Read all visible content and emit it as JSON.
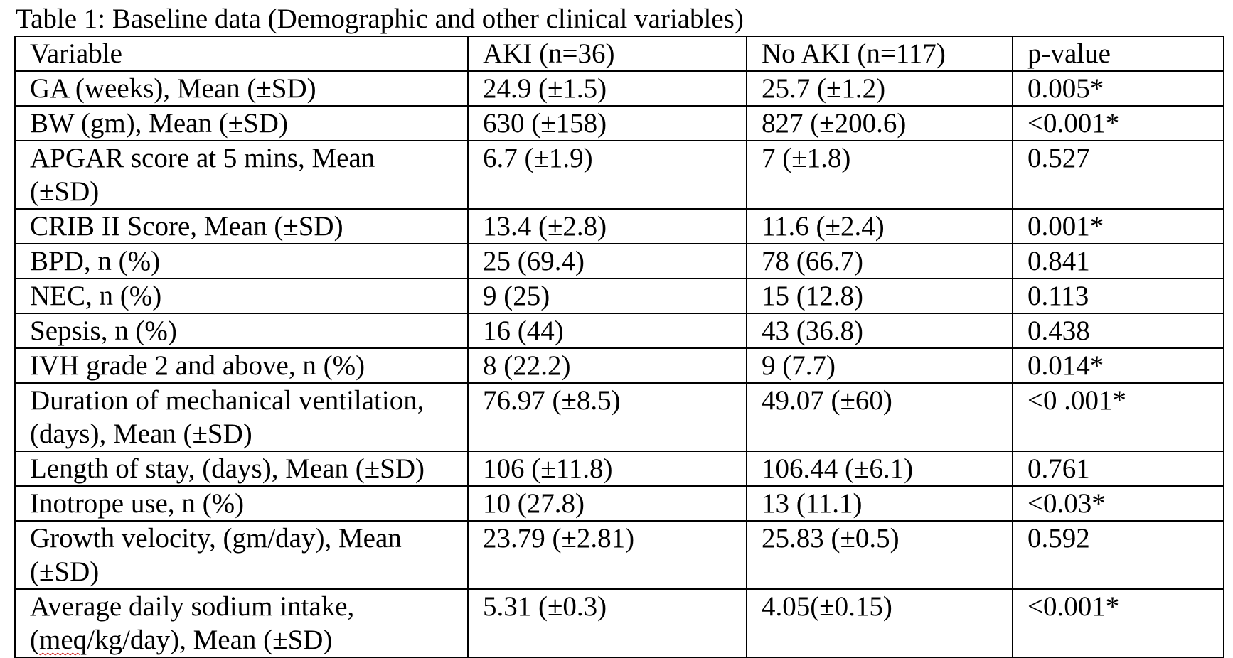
{
  "caption": "Table 1: Baseline data (Demographic and other clinical variables)",
  "table": {
    "header": [
      "Variable",
      "AKI (n=36)",
      "No AKI (n=117)",
      "p-value"
    ],
    "rows": [
      {
        "variable": [
          "GA (weeks), Mean (±SD)"
        ],
        "aki": "24.9 (±1.5)",
        "no_aki": "25.7 (±1.2)",
        "p": "0.005*"
      },
      {
        "variable": [
          "BW (gm), Mean (±SD)"
        ],
        "aki": "630 (±158)",
        "no_aki": "827 (±200.6)",
        "p": "<0.001*"
      },
      {
        "variable": [
          "APGAR score at 5 mins, Mean",
          "(±SD)"
        ],
        "aki": "6.7 (±1.9)",
        "no_aki": "7 (±1.8)",
        "p": "0.527"
      },
      {
        "variable": [
          "CRIB II Score, Mean (±SD)"
        ],
        "aki": "13.4 (±2.8)",
        "no_aki": "11.6 (±2.4)",
        "p": "0.001*"
      },
      {
        "variable": [
          "BPD, n (%)"
        ],
        "aki": "25 (69.4)",
        "no_aki": "78 (66.7)",
        "p": "0.841"
      },
      {
        "variable": [
          "NEC, n (%)"
        ],
        "aki": "9 (25)",
        "no_aki": "15 (12.8)",
        "p": "0.113"
      },
      {
        "variable": [
          "Sepsis, n (%)"
        ],
        "aki": "16 (44)",
        "no_aki": "43 (36.8)",
        "p": "0.438"
      },
      {
        "variable": [
          "IVH grade 2 and above, n (%)"
        ],
        "aki": "8 (22.2)",
        "no_aki": "9 (7.7)",
        "p": "0.014*"
      },
      {
        "variable": [
          "Duration of mechanical ventilation,",
          "(days), Mean (±SD)"
        ],
        "aki": "76.97 (±8.5)",
        "no_aki": "49.07 (±60)",
        "p": "<0 .001*"
      },
      {
        "variable": [
          "Length of stay, (days), Mean (±SD)"
        ],
        "aki": "106 (±11.8)",
        "no_aki": "106.44 (±6.1)",
        "p": "0.761"
      },
      {
        "variable": [
          "Inotrope use, n (%)"
        ],
        "aki": "10 (27.8)",
        "no_aki": "13 (11.1)",
        "p": "<0.03*"
      },
      {
        "variable": [
          "Growth velocity, (gm/day), Mean",
          "(±SD)"
        ],
        "aki": "23.79 (±2.81)",
        "no_aki": "25.83 (±0.5)",
        "p": "0.592"
      }
    ],
    "last_row": {
      "variable_line1": "Average daily sodium intake,",
      "variable_line2_open": "(",
      "variable_line2_flagged": "meq",
      "variable_line2_rest": "/kg/day), Mean (±SD)",
      "aki": "5.31 (±0.3)",
      "no_aki": "4.05(±0.15)",
      "p": "<0.001*"
    }
  },
  "colors": {
    "text": "#000000",
    "border": "#000000",
    "spellcheck_underline": "#d02020"
  }
}
